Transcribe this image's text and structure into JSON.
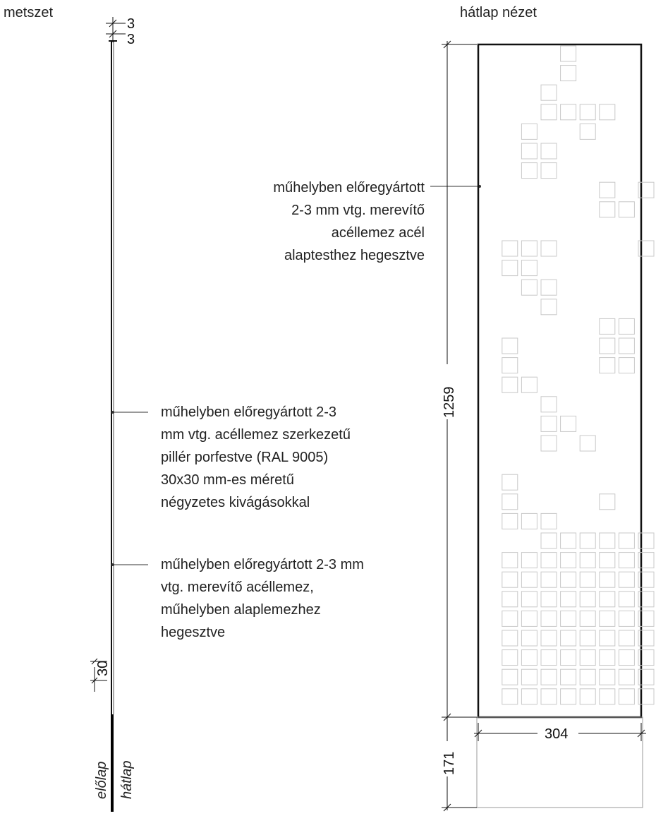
{
  "section_view": {
    "title": "metszet",
    "dim_top_1": "3",
    "dim_top_2": "3",
    "dim_bottom": "30",
    "front_label": "előlap",
    "back_label": "hátlap"
  },
  "back_view": {
    "title": "hátlap nézet",
    "dim_height": "1259",
    "dim_width": "304",
    "dim_base": "171"
  },
  "annotations": {
    "stiffener": [
      "műhelyben előregyártott",
      "2-3 mm vtg. merevítő",
      "acéllemez acél",
      "alaptesthez hegesztve"
    ],
    "pillar": [
      "műhelyben előregyártott 2-3",
      "mm vtg. acéllemez szerkezetű",
      "pillér porfestve (RAL 9005)",
      "30x30 mm-es méretű",
      "négyzetes kivágásokkal"
    ],
    "base_stiffener": [
      "műhelyben előregyártott 2-3 mm",
      "vtg. merevítő acéllemez,",
      "műhelyben alaplemezhez",
      "hegesztve"
    ]
  },
  "colors": {
    "line": "#111111",
    "cutout": "#c8c8c8",
    "base_outline": "#9a9a9a"
  },
  "cutout_grid": {
    "columns": 8,
    "rows": 26,
    "cells": [
      [
        1,
        0
      ],
      [
        1,
        1
      ],
      [
        0,
        2
      ],
      [
        0,
        3
      ],
      [
        1,
        3
      ],
      [
        2,
        3
      ],
      [
        3,
        3
      ],
      [
        6,
        3
      ],
      [
        -1,
        4
      ],
      [
        2,
        4
      ],
      [
        -1,
        5
      ],
      [
        0,
        5
      ],
      [
        -1,
        6
      ],
      [
        0,
        6
      ],
      [
        3,
        7
      ],
      [
        5,
        7
      ],
      [
        6,
        7
      ],
      [
        3,
        8
      ],
      [
        4,
        8
      ],
      [
        -2,
        10
      ],
      [
        -1,
        10
      ],
      [
        0,
        10
      ],
      [
        5,
        10
      ],
      [
        6,
        10
      ],
      [
        -2,
        11
      ],
      [
        -1,
        11
      ],
      [
        6,
        11
      ],
      [
        -1,
        12
      ],
      [
        0,
        12
      ],
      [
        6,
        12
      ],
      [
        0,
        13
      ],
      [
        3,
        14
      ],
      [
        4,
        14
      ],
      [
        -2,
        15
      ],
      [
        3,
        15
      ],
      [
        4,
        15
      ],
      [
        -2,
        16
      ],
      [
        3,
        16
      ],
      [
        4,
        16
      ],
      [
        -2,
        17
      ],
      [
        -1,
        17
      ],
      [
        6,
        17
      ],
      [
        0,
        18
      ],
      [
        6,
        18
      ],
      [
        0,
        19
      ],
      [
        1,
        19
      ],
      [
        0,
        20
      ],
      [
        2,
        20
      ],
      [
        -2,
        22
      ],
      [
        -2,
        23
      ],
      [
        3,
        23
      ],
      [
        -2,
        24
      ],
      [
        -1,
        24
      ],
      [
        0,
        24
      ],
      [
        6,
        24
      ],
      [
        0,
        25
      ],
      [
        1,
        25
      ],
      [
        2,
        25
      ],
      [
        3,
        25
      ],
      [
        4,
        25
      ],
      [
        5,
        25
      ],
      [
        6,
        25
      ]
    ],
    "full_rows_from": 26,
    "full_rows_to": 33
  }
}
